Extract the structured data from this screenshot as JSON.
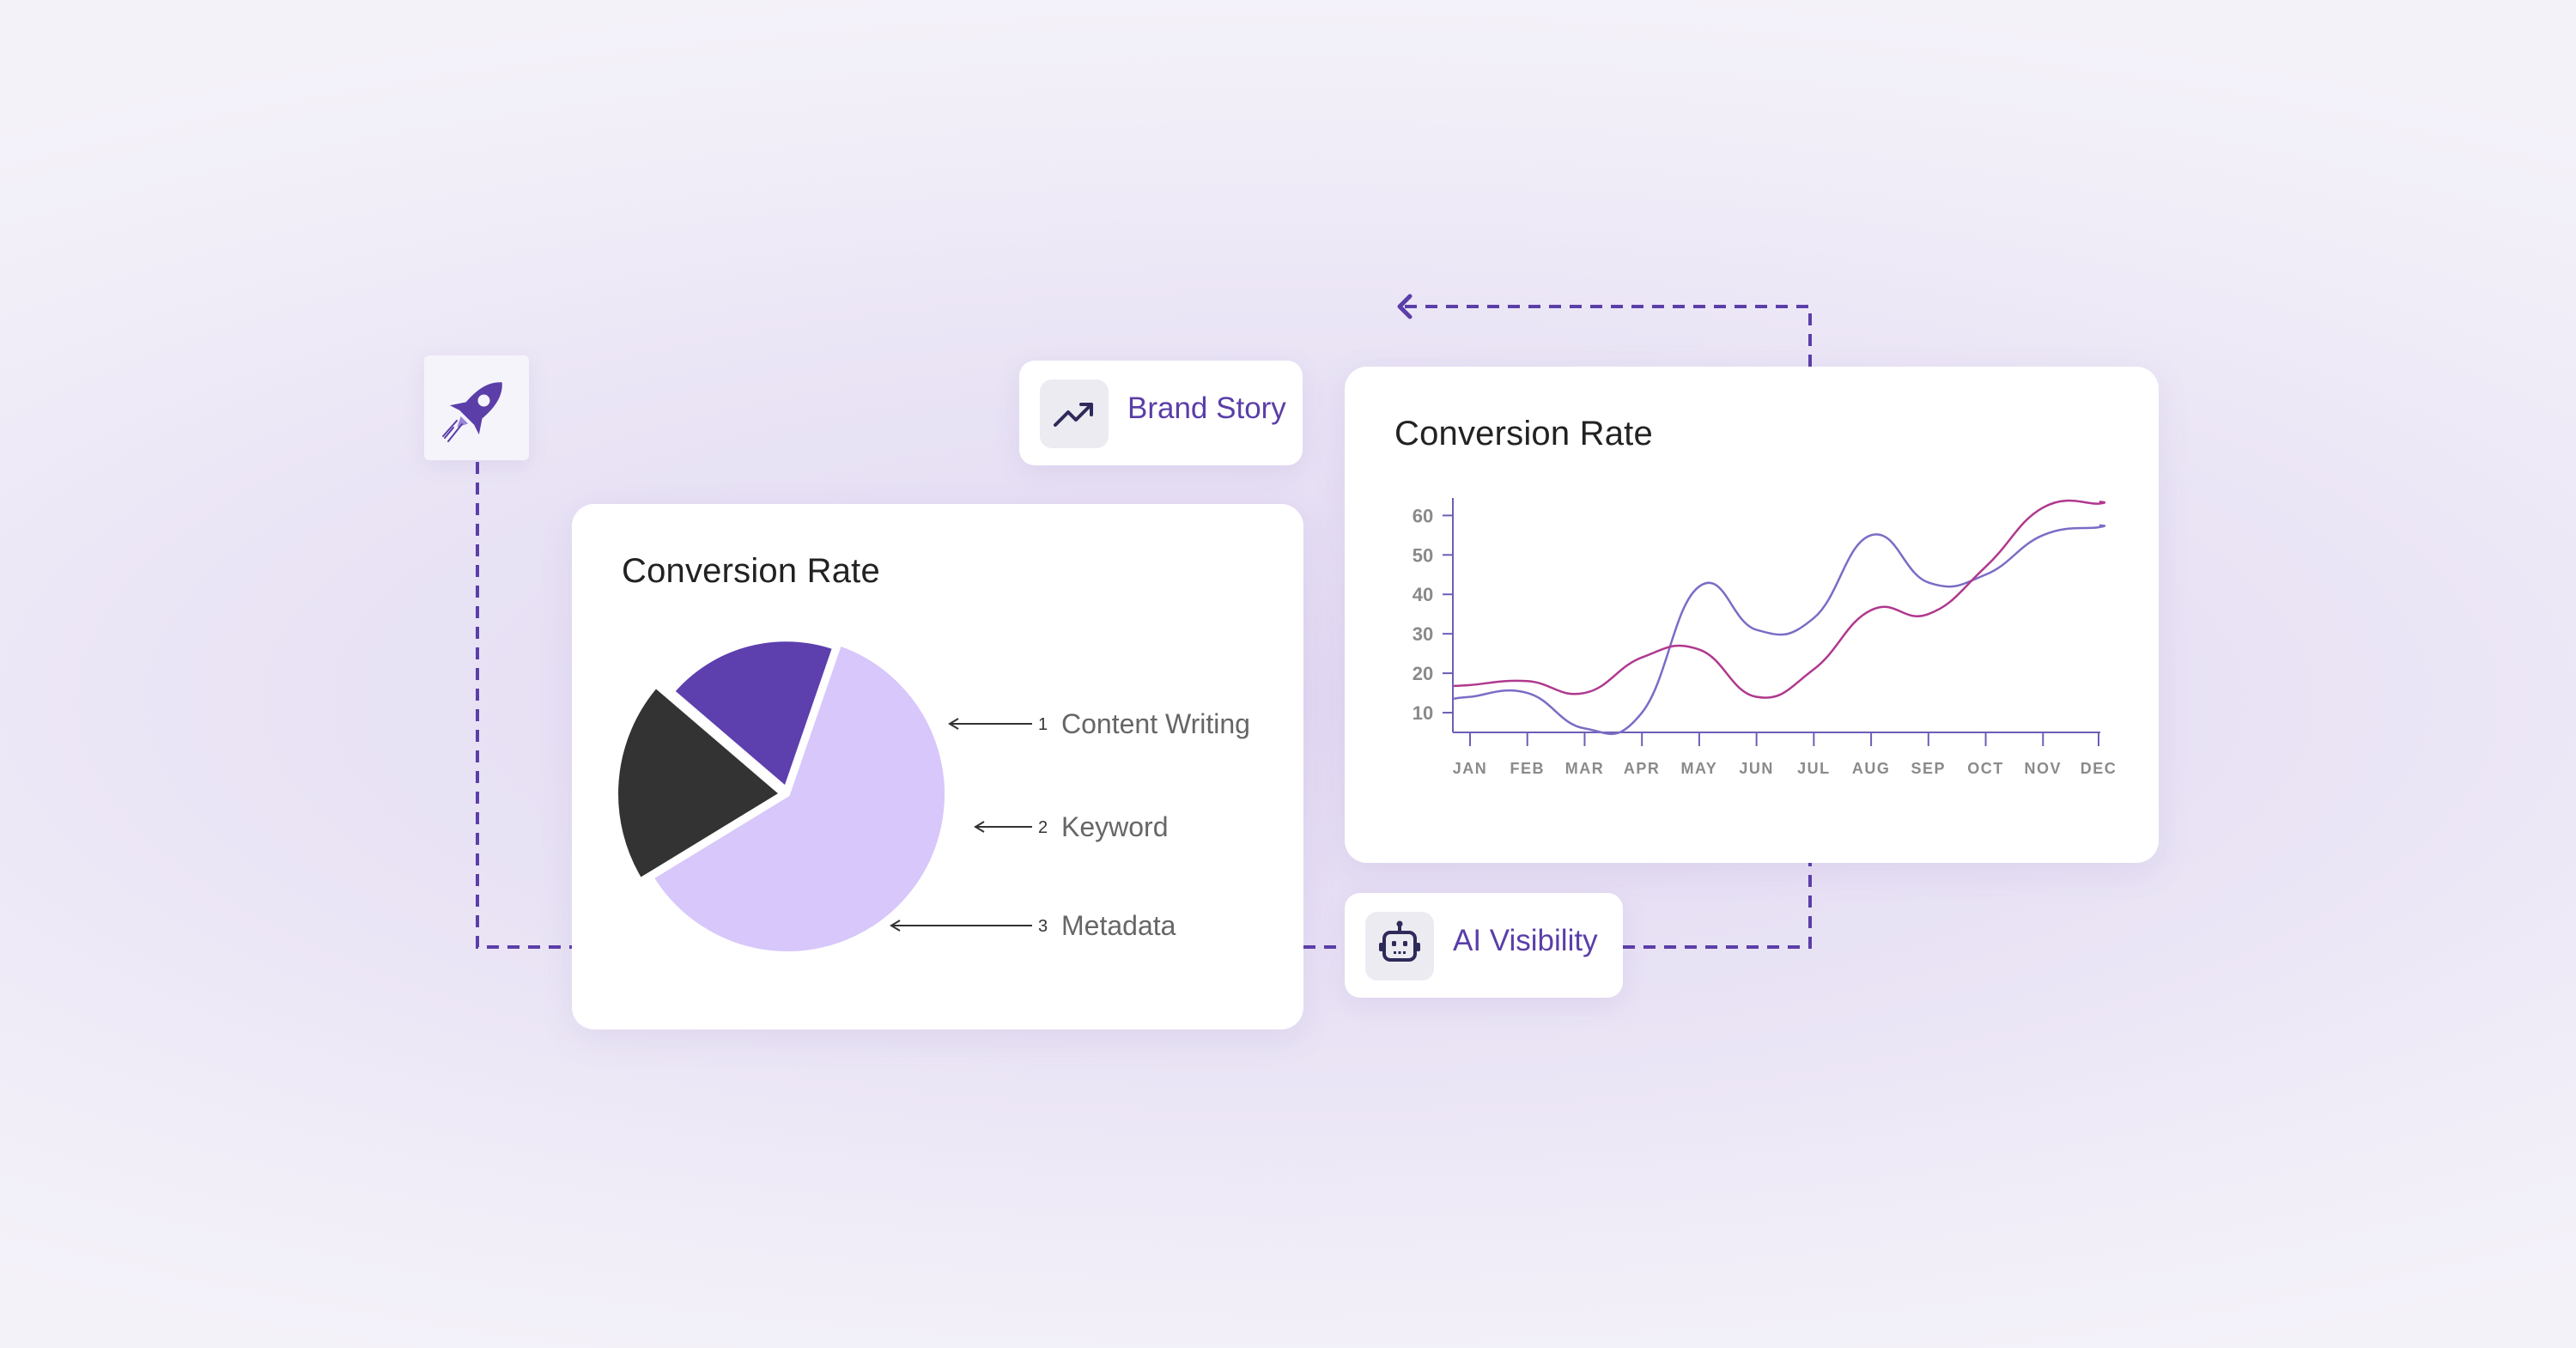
{
  "connectors": {
    "color": "#5b3ea8"
  },
  "chips": {
    "brand_story": {
      "label": "Brand Story",
      "icon": "trending-up-icon"
    },
    "ai_visibility": {
      "label": "AI Visibility",
      "icon": "robot-icon"
    },
    "rocket": {
      "icon": "rocket-icon"
    }
  },
  "colors": {
    "accent": "#5b3ea8",
    "pie_light": "#d7c7fb",
    "pie_dark": "#333333",
    "pie_purple": "#5d3fae",
    "line_purple": "#7b6cc6",
    "line_magenta": "#b0388e",
    "axis": "#6b5fb5"
  },
  "chart_data": [
    {
      "type": "pie",
      "title": "Conversion Rate",
      "slices": [
        {
          "label": "Content Writing",
          "number": "1",
          "value": 61,
          "color": "#d7c7fb"
        },
        {
          "label": "Keyword",
          "number": "2",
          "value": 20,
          "color": "#333333"
        },
        {
          "label": "Metadata",
          "number": "3",
          "value": 19,
          "color": "#5d3fae"
        }
      ]
    },
    {
      "type": "line",
      "title": "Conversion Rate",
      "categories": [
        "JAN",
        "FEB",
        "MAR",
        "APR",
        "MAY",
        "JUN",
        "JUL",
        "AUG",
        "SEP",
        "OCT",
        "NOV",
        "DEC"
      ],
      "yticks": [
        "10",
        "20",
        "30",
        "40",
        "50",
        "60"
      ],
      "ylim": [
        5,
        64
      ],
      "series": [
        {
          "color": "#7b6cc6",
          "values": [
            14,
            15,
            6,
            10,
            42,
            31,
            34,
            55,
            43,
            45,
            55,
            57
          ]
        },
        {
          "color": "#b0388e",
          "values": [
            17,
            18,
            15,
            24,
            26,
            14,
            21,
            36,
            35,
            47,
            62,
            63
          ]
        }
      ],
      "grid": false
    }
  ]
}
